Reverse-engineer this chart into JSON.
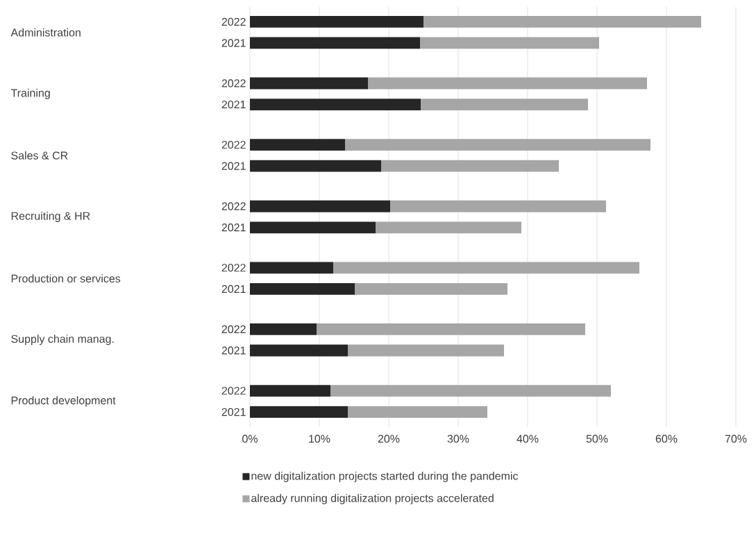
{
  "chart_data": {
    "type": "bar",
    "orientation": "horizontal",
    "stacked": true,
    "categories": [
      "2022",
      "2021",
      "2022",
      "2021",
      "2022",
      "2021",
      "2022",
      "2021",
      "2022",
      "2021",
      "2022",
      "2021",
      "2022",
      "2021"
    ],
    "annotations": [
      "Administration",
      "Training",
      "Sales & CR",
      "Recruiting & HR",
      "Production or services",
      "Supply chain manag.",
      "Product development"
    ],
    "series": [
      {
        "name": "new digitalization projects started during the pandemic",
        "color": "#262626",
        "values": [
          25,
          24.5,
          17,
          24.6,
          13.7,
          18.9,
          20.2,
          18.1,
          12,
          15.1,
          9.6,
          14.1,
          11.6,
          14.1
        ]
      },
      {
        "name": "already running digitalization projects accelerated",
        "color": "#a6a6a6",
        "values": [
          40,
          25.8,
          40.2,
          24.1,
          44,
          25.6,
          31.1,
          21,
          44.1,
          22,
          38.7,
          22.5,
          40.4,
          20.1
        ]
      }
    ],
    "xlim": [
      0,
      70
    ],
    "xticks": [
      {
        "value": 0,
        "label": "0%"
      },
      {
        "value": 10,
        "label": "10%"
      },
      {
        "value": 20,
        "label": "20%"
      },
      {
        "value": 30,
        "label": "30%"
      },
      {
        "value": 40,
        "label": "40%"
      },
      {
        "value": 50,
        "label": "50%"
      },
      {
        "value": 60,
        "label": "60%"
      },
      {
        "value": 70,
        "label": "70%"
      }
    ],
    "grid": "x",
    "legend": "bottom"
  }
}
